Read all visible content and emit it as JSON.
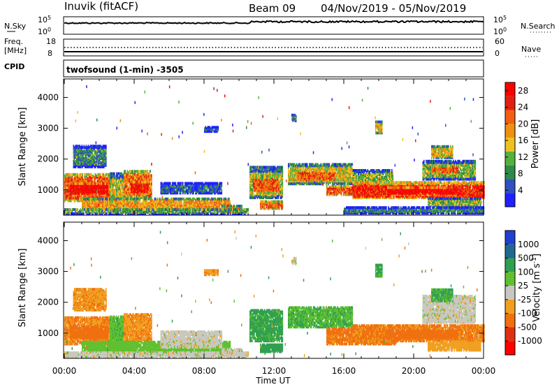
{
  "header": {
    "station": "Inuvik (fitACF)",
    "beam": "Beam 09",
    "date_range": "04/Nov/2019 - 05/Nov/2019"
  },
  "strip_labels": {
    "nsky": "N.Sky",
    "nsky_top": "10^5",
    "nsky_bottom": "10^0",
    "nsearch": "N.Search",
    "nsearch_top": "10^5",
    "nsearch_bottom": "10^0",
    "freq_line1": "Freq.",
    "freq_line2": "[MHz]",
    "freq_top": "18",
    "freq_bottom": "8",
    "nave": "Nave",
    "nave_top": "60",
    "nave_bottom": "0",
    "cpid": "CPID",
    "cpid_value": "twofsound (1-min) -3505"
  },
  "colors": {
    "power": [
      "#2020ff",
      "#3050c0",
      "#2e8a4a",
      "#55b040",
      "#f0c020",
      "#f09010",
      "#f06010",
      "#e02010",
      "#ff0000"
    ],
    "velocity": [
      "#ff0000",
      "#e03010",
      "#f07010",
      "#f0a020",
      "#c8c8c0",
      "#60c030",
      "#30a050",
      "#206890",
      "#2040d0"
    ]
  },
  "chart_data": [
    {
      "type": "heatmap",
      "name": "power",
      "ylabel": "Slant Range [km]",
      "xlabel": "",
      "x_ticks": [
        "00:00",
        "04:00",
        "08:00",
        "12:00",
        "16:00",
        "20:00",
        "00:00"
      ],
      "xlim_hours": [
        0,
        24
      ],
      "y_ticks": [
        1000,
        2000,
        3000,
        4000
      ],
      "ylim": [
        180,
        4600
      ],
      "colorbar_label": "Power [dB]",
      "colorbar_ticks": [
        4,
        8,
        12,
        16,
        20,
        24,
        28
      ],
      "colorbar_range": [
        0,
        30
      ],
      "regions": [
        {
          "t0": 0.0,
          "t1": 2.8,
          "r0": 600,
          "r1": 1500,
          "v": 22
        },
        {
          "t0": 0.3,
          "t1": 2.5,
          "r0": 800,
          "r1": 1200,
          "v": 28
        },
        {
          "t0": 0.5,
          "t1": 2.4,
          "r0": 1700,
          "r1": 2400,
          "v": 9
        },
        {
          "t0": 2.6,
          "t1": 3.4,
          "r0": 400,
          "r1": 1500,
          "v": 14
        },
        {
          "t0": 3.4,
          "t1": 5.0,
          "r0": 700,
          "r1": 1600,
          "v": 20
        },
        {
          "t0": 3.8,
          "t1": 4.8,
          "r0": 850,
          "r1": 1250,
          "v": 27
        },
        {
          "t0": 1.0,
          "t1": 9.5,
          "r0": 300,
          "r1": 700,
          "v": 18
        },
        {
          "t0": 5.5,
          "t1": 9.0,
          "r0": 850,
          "r1": 1200,
          "v": 6
        },
        {
          "t0": 9.0,
          "t1": 10.2,
          "r0": 250,
          "r1": 450,
          "v": 16
        },
        {
          "t0": 10.6,
          "t1": 12.5,
          "r0": 700,
          "r1": 1700,
          "v": 14
        },
        {
          "t0": 10.8,
          "t1": 12.3,
          "r0": 900,
          "r1": 1400,
          "v": 22
        },
        {
          "t0": 11.2,
          "t1": 12.5,
          "r0": 350,
          "r1": 600,
          "v": 22
        },
        {
          "t0": 12.8,
          "t1": 16.5,
          "r0": 1150,
          "r1": 1800,
          "v": 15
        },
        {
          "t0": 13.3,
          "t1": 15.5,
          "r0": 1250,
          "r1": 1600,
          "v": 22
        },
        {
          "t0": 16.5,
          "t1": 18.8,
          "r0": 1000,
          "r1": 1600,
          "v": 12
        },
        {
          "t0": 15.0,
          "t1": 19.0,
          "r0": 800,
          "r1": 1100,
          "v": 22
        },
        {
          "t0": 16.5,
          "t1": 24.0,
          "r0": 700,
          "r1": 1200,
          "v": 25
        },
        {
          "t0": 18.5,
          "t1": 22.5,
          "r0": 800,
          "r1": 1050,
          "v": 28
        },
        {
          "t0": 20.5,
          "t1": 23.5,
          "r0": 1300,
          "r1": 1900,
          "v": 12
        },
        {
          "t0": 21.0,
          "t1": 22.5,
          "r0": 1500,
          "r1": 1750,
          "v": 22
        },
        {
          "t0": 21.0,
          "t1": 22.2,
          "r0": 2000,
          "r1": 2400,
          "v": 16
        },
        {
          "t0": 20.8,
          "t1": 23.8,
          "r0": 400,
          "r1": 700,
          "v": 12
        },
        {
          "t0": 16.0,
          "t1": 24.0,
          "r0": 200,
          "r1": 400,
          "v": 8
        },
        {
          "t0": 0.0,
          "t1": 10.5,
          "r0": 180,
          "r1": 350,
          "v": 10
        },
        {
          "t0": 17.8,
          "t1": 18.2,
          "r0": 2800,
          "r1": 3200,
          "v": 16
        },
        {
          "t0": 8.0,
          "t1": 8.8,
          "r0": 2850,
          "r1": 3000,
          "v": 6
        },
        {
          "t0": 13.0,
          "t1": 13.3,
          "r0": 3200,
          "r1": 3400,
          "v": 10
        }
      ]
    },
    {
      "type": "heatmap",
      "name": "velocity",
      "ylabel": "Slant Range [km]",
      "xlabel": "Time UT",
      "x_ticks": [
        "00:00",
        "04:00",
        "08:00",
        "12:00",
        "16:00",
        "20:00",
        "00:00"
      ],
      "xlim_hours": [
        0,
        24
      ],
      "y_ticks": [
        1000,
        2000,
        3000,
        4000
      ],
      "ylim": [
        180,
        4600
      ],
      "colorbar_label": "Velocity [m s^-1]",
      "colorbar_ticks": [
        "-1000",
        "-500",
        "-100",
        "-25",
        "25",
        "100",
        "500",
        "1000"
      ],
      "regions": [
        {
          "t0": 0.0,
          "t1": 2.8,
          "r0": 600,
          "r1": 1500,
          "v": -100
        },
        {
          "t0": 0.3,
          "t1": 2.5,
          "r0": 800,
          "r1": 1200,
          "v": -200
        },
        {
          "t0": 0.5,
          "t1": 2.4,
          "r0": 1700,
          "r1": 2400,
          "v": -80
        },
        {
          "t0": 2.6,
          "t1": 3.4,
          "r0": 400,
          "r1": 1500,
          "v": 80
        },
        {
          "t0": 3.4,
          "t1": 5.0,
          "r0": 700,
          "r1": 1600,
          "v": -90
        },
        {
          "t0": 1.0,
          "t1": 9.5,
          "r0": 300,
          "r1": 700,
          "v": 60
        },
        {
          "t0": 5.5,
          "t1": 9.0,
          "r0": 500,
          "r1": 1000,
          "v": 0
        },
        {
          "t0": 9.0,
          "t1": 10.2,
          "r0": 250,
          "r1": 450,
          "v": 0
        },
        {
          "t0": 10.6,
          "t1": 12.5,
          "r0": 700,
          "r1": 1700,
          "v": 150
        },
        {
          "t0": 11.2,
          "t1": 12.5,
          "r0": 350,
          "r1": 600,
          "v": 200
        },
        {
          "t0": 12.8,
          "t1": 16.5,
          "r0": 1150,
          "r1": 1800,
          "v": 90
        },
        {
          "t0": 15.0,
          "t1": 19.0,
          "r0": 600,
          "r1": 1100,
          "v": -150
        },
        {
          "t0": 16.5,
          "t1": 24.0,
          "r0": 700,
          "r1": 1200,
          "v": -120
        },
        {
          "t0": 18.5,
          "t1": 22.5,
          "r0": 800,
          "r1": 1050,
          "v": -300
        },
        {
          "t0": 20.5,
          "t1": 23.5,
          "r0": 1300,
          "r1": 2200,
          "v": 0
        },
        {
          "t0": 21.0,
          "t1": 22.2,
          "r0": 2000,
          "r1": 2400,
          "v": 120
        },
        {
          "t0": 20.8,
          "t1": 23.8,
          "r0": 400,
          "r1": 700,
          "v": -60
        },
        {
          "t0": 0.0,
          "t1": 10.5,
          "r0": 180,
          "r1": 350,
          "v": 0
        },
        {
          "t0": 17.8,
          "t1": 18.2,
          "r0": 2800,
          "r1": 3200,
          "v": 120
        },
        {
          "t0": 8.0,
          "t1": 8.8,
          "r0": 2850,
          "r1": 3000,
          "v": -80
        },
        {
          "t0": 13.0,
          "t1": 13.3,
          "r0": 3200,
          "r1": 3400,
          "v": 0
        }
      ]
    }
  ]
}
